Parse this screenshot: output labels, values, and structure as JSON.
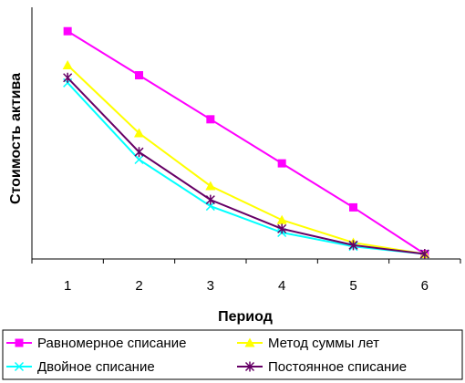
{
  "chart_data": {
    "type": "line",
    "title": "",
    "xlabel": "Период",
    "ylabel": "Стоимость актива",
    "categories": [
      "1",
      "2",
      "3",
      "4",
      "5",
      "6"
    ],
    "x": [
      1,
      2,
      3,
      4,
      5,
      6
    ],
    "ylim": [
      0,
      1
    ],
    "y_ticks_shown": false,
    "grid": false,
    "legend_position": "bottom",
    "series": [
      {
        "name": "Равномерное списание",
        "color": "#ff00ff",
        "marker": "square",
        "values": [
          0.905,
          0.73,
          0.555,
          0.38,
          0.205,
          0.02
        ]
      },
      {
        "name": "Метод суммы лет",
        "color": "#ffff00",
        "marker": "triangle",
        "values": [
          0.77,
          0.5,
          0.29,
          0.155,
          0.065,
          0.02
        ]
      },
      {
        "name": "Двойное списание",
        "color": "#00ffff",
        "marker": "x",
        "values": [
          0.7,
          0.395,
          0.21,
          0.105,
          0.05,
          0.02
        ]
      },
      {
        "name": "Постоянное списание",
        "color": "#660066",
        "marker": "star",
        "values": [
          0.72,
          0.425,
          0.235,
          0.12,
          0.055,
          0.02
        ]
      }
    ]
  }
}
